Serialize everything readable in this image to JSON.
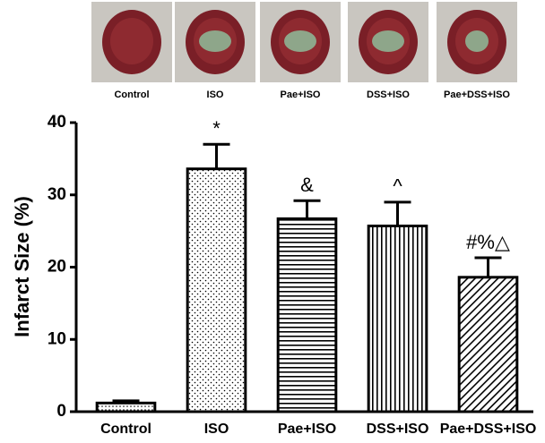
{
  "photos": {
    "labels": [
      "Control",
      "ISO",
      "Pae+ISO",
      "DSS+ISO",
      "Pae+DSS+ISO"
    ]
  },
  "chart_data": {
    "type": "bar",
    "y_label": "Infarct Size (%)",
    "categories": [
      "Control",
      "ISO",
      "Pae+ISO",
      "DSS+ISO",
      "Pae+DSS+ISO"
    ],
    "values": [
      1.2,
      33.6,
      26.7,
      25.7,
      18.6
    ],
    "errors": [
      0.3,
      3.4,
      2.5,
      3.3,
      2.7
    ],
    "annotations": [
      null,
      "*",
      "&",
      "^",
      "#%△"
    ],
    "patterns": [
      "dots-small",
      "dots",
      "horizontal",
      "vertical",
      "diagonal"
    ],
    "color": "#000000",
    "ylim": [
      0,
      40
    ],
    "yticks": [
      0,
      10,
      20,
      30,
      40
    ]
  }
}
